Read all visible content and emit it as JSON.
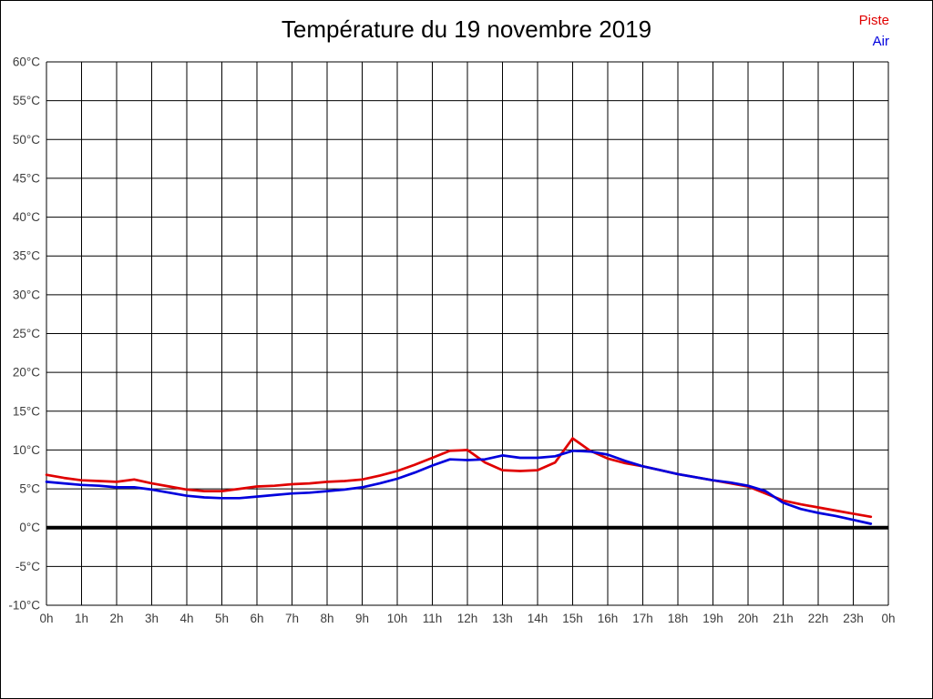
{
  "title": "Température du 19 novembre 2019",
  "legend": [
    {
      "label": "Piste",
      "color": "#e00000"
    },
    {
      "label": "Air",
      "color": "#0000dd"
    }
  ],
  "axes": {
    "y": {
      "min": -10,
      "max": 60,
      "step": 5,
      "unit": "°C",
      "tick_labels": [
        "60°C",
        "55°C",
        "50°C",
        "45°C",
        "40°C",
        "35°C",
        "30°C",
        "25°C",
        "20°C",
        "15°C",
        "10°C",
        "5°C",
        "0°C",
        "-5°C",
        "-10°C"
      ],
      "zero_line_bold": true
    },
    "x": {
      "min": 0,
      "max": 24,
      "step": 1,
      "tick_labels": [
        "0h",
        "1h",
        "2h",
        "3h",
        "4h",
        "5h",
        "6h",
        "7h",
        "8h",
        "9h",
        "10h",
        "11h",
        "12h",
        "13h",
        "14h",
        "15h",
        "16h",
        "17h",
        "18h",
        "19h",
        "20h",
        "21h",
        "22h",
        "23h",
        "0h"
      ]
    }
  },
  "colors": {
    "grid": "#000000",
    "zero_line": "#000000",
    "axis_text": "#3c3c3c",
    "background": "#ffffff"
  },
  "chart_data": {
    "type": "line",
    "title": "Température du 19 novembre 2019",
    "xlabel": "",
    "ylabel": "",
    "xlim": [
      0,
      24
    ],
    "ylim": [
      -10,
      60
    ],
    "grid": true,
    "legend_position": "top-right",
    "x": [
      0,
      0.5,
      1,
      1.5,
      2,
      2.5,
      3,
      3.5,
      4,
      4.5,
      5,
      5.5,
      6,
      6.5,
      7,
      7.5,
      8,
      8.5,
      9,
      9.5,
      10,
      10.5,
      11,
      11.5,
      12,
      12.5,
      13,
      13.5,
      14,
      14.5,
      15,
      15.5,
      16,
      16.5,
      17,
      17.5,
      18,
      18.5,
      19,
      19.5,
      20,
      20.5,
      21,
      21.5,
      22,
      22.5,
      23,
      23.5
    ],
    "series": [
      {
        "name": "Piste",
        "color": "#e00000",
        "values": [
          6.8,
          6.4,
          6.1,
          6.0,
          5.9,
          6.2,
          5.7,
          5.3,
          4.9,
          4.7,
          4.7,
          5.0,
          5.3,
          5.4,
          5.6,
          5.7,
          5.9,
          6.0,
          6.2,
          6.7,
          7.3,
          8.1,
          9.0,
          9.9,
          10.0,
          8.4,
          7.4,
          7.3,
          7.4,
          8.4,
          11.5,
          9.9,
          8.9,
          8.3,
          7.9,
          7.4,
          6.9,
          6.5,
          6.1,
          5.7,
          5.3,
          4.4,
          3.5,
          3.0,
          2.6,
          2.2,
          1.8,
          1.4
        ]
      },
      {
        "name": "Air",
        "color": "#0000dd",
        "values": [
          5.9,
          5.7,
          5.5,
          5.4,
          5.2,
          5.2,
          4.9,
          4.5,
          4.1,
          3.9,
          3.8,
          3.8,
          4.0,
          4.2,
          4.4,
          4.5,
          4.7,
          4.9,
          5.2,
          5.7,
          6.3,
          7.1,
          8.0,
          8.8,
          8.7,
          8.8,
          9.3,
          9.0,
          9.0,
          9.2,
          9.9,
          9.8,
          9.4,
          8.6,
          7.9,
          7.4,
          6.9,
          6.5,
          6.1,
          5.8,
          5.4,
          4.7,
          3.2,
          2.4,
          1.9,
          1.5,
          1.0,
          0.5
        ]
      }
    ]
  }
}
